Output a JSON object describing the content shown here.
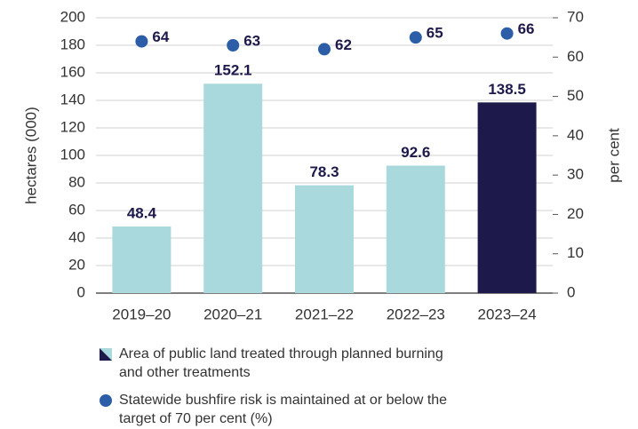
{
  "chart_data": {
    "type": "bar",
    "categories": [
      "2019–20",
      "2020–21",
      "2021–22",
      "2022–23",
      "2023–24"
    ],
    "ylabel": "hectares (000)",
    "y2label": "per cent",
    "ylim": [
      0,
      200
    ],
    "yticks": [
      0,
      20,
      40,
      60,
      80,
      100,
      120,
      140,
      160,
      180,
      200
    ],
    "y2lim": [
      0,
      70
    ],
    "y2ticks": [
      0,
      10,
      20,
      30,
      40,
      50,
      60,
      70
    ],
    "grid": true,
    "series": [
      {
        "name": "Area of public land treated through planned burning and other treatments",
        "type": "bar",
        "colors": [
          "#a9d9dd",
          "#a9d9dd",
          "#a9d9dd",
          "#a9d9dd",
          "#1d1a4b"
        ],
        "values": [
          48.4,
          152.1,
          78.3,
          92.6,
          138.5
        ]
      },
      {
        "name": "Statewide bushfire risk is maintained at or below the target of 70 per cent (%)",
        "type": "scatter",
        "axis": "y2",
        "color": "#2b5ea7",
        "values": [
          64,
          63,
          62,
          65,
          66
        ]
      }
    ]
  }
}
